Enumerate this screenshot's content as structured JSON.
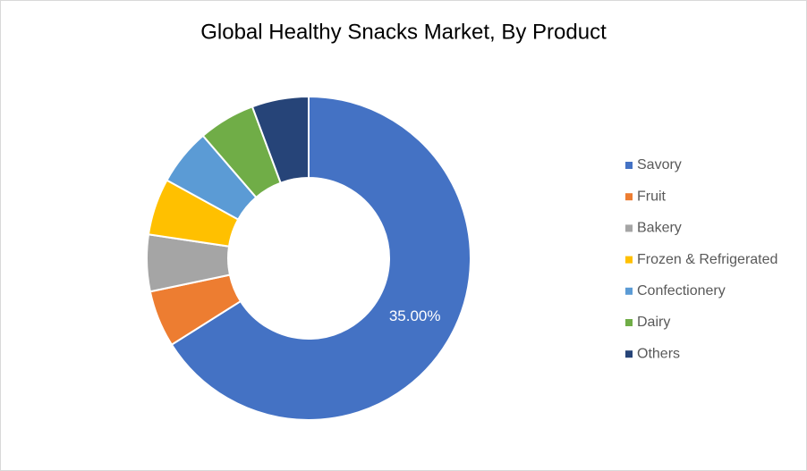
{
  "chart_data": {
    "type": "donut",
    "title": "Global Healthy Snacks Market, By Product",
    "categories": [
      "Savory",
      "Fruit",
      "Bakery",
      "Frozen & Refrigerated",
      "Confectionery",
      "Dairy",
      "Others"
    ],
    "values": [
      35,
      3,
      3,
      3,
      3,
      3,
      3
    ],
    "value_labels": [
      "35.00%",
      null,
      null,
      null,
      null,
      null,
      null
    ],
    "colors": [
      "#4472c4",
      "#ed7d31",
      "#a5a5a5",
      "#ffc000",
      "#5b9bd5",
      "#70ad47",
      "#264478"
    ],
    "legend": "right"
  }
}
